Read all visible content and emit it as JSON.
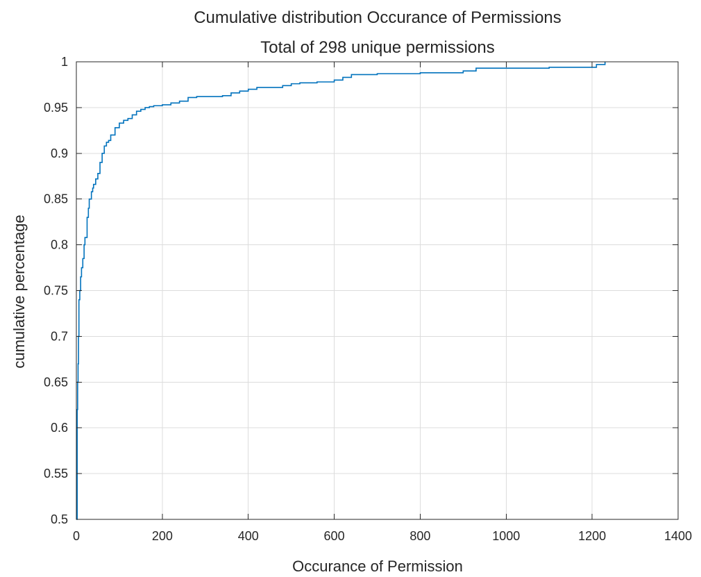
{
  "chart_data": {
    "type": "line",
    "title": "Cumulative distribution Occurance of Permissions",
    "subtitle": "Total of 298 unique permissions",
    "xlabel": "Occurance of Permission",
    "ylabel": "cumulative percentage",
    "xlim": [
      0,
      1400
    ],
    "ylim": [
      0.5,
      1
    ],
    "xticks": [
      0,
      200,
      400,
      600,
      800,
      1000,
      1200,
      1400
    ],
    "xtick_labels": [
      "0",
      "200",
      "400",
      "600",
      "800",
      "1000",
      "1200",
      "1400"
    ],
    "yticks": [
      0.5,
      0.55,
      0.6,
      0.65,
      0.7,
      0.75,
      0.8,
      0.85,
      0.9,
      0.95,
      1
    ],
    "ytick_labels": [
      "0.5",
      "0.55",
      "0.6",
      "0.65",
      "0.7",
      "0.75",
      "0.8",
      "0.85",
      "0.9",
      "0.95",
      "1"
    ],
    "grid": true,
    "series": [
      {
        "color": "#0072BD",
        "step": true,
        "x": [
          0,
          2,
          3,
          4,
          5,
          6,
          8,
          10,
          12,
          15,
          18,
          20,
          25,
          28,
          30,
          35,
          38,
          40,
          45,
          50,
          55,
          60,
          65,
          70,
          75,
          80,
          90,
          100,
          110,
          120,
          130,
          140,
          150,
          160,
          170,
          180,
          200,
          220,
          240,
          260,
          280,
          300,
          340,
          360,
          380,
          400,
          420,
          450,
          480,
          500,
          520,
          560,
          600,
          620,
          640,
          700,
          800,
          900,
          930,
          1000,
          1100,
          1200,
          1210,
          1230
        ],
        "y": [
          0.5,
          0.62,
          0.65,
          0.67,
          0.7,
          0.74,
          0.75,
          0.765,
          0.775,
          0.785,
          0.8,
          0.808,
          0.83,
          0.84,
          0.85,
          0.858,
          0.862,
          0.866,
          0.872,
          0.878,
          0.89,
          0.9,
          0.908,
          0.912,
          0.914,
          0.92,
          0.928,
          0.933,
          0.936,
          0.938,
          0.942,
          0.946,
          0.948,
          0.95,
          0.951,
          0.952,
          0.953,
          0.955,
          0.957,
          0.961,
          0.962,
          0.962,
          0.963,
          0.966,
          0.968,
          0.97,
          0.972,
          0.972,
          0.974,
          0.976,
          0.977,
          0.978,
          0.98,
          0.983,
          0.986,
          0.987,
          0.988,
          0.99,
          0.993,
          0.993,
          0.994,
          0.994,
          0.997,
          1.0
        ]
      }
    ]
  }
}
